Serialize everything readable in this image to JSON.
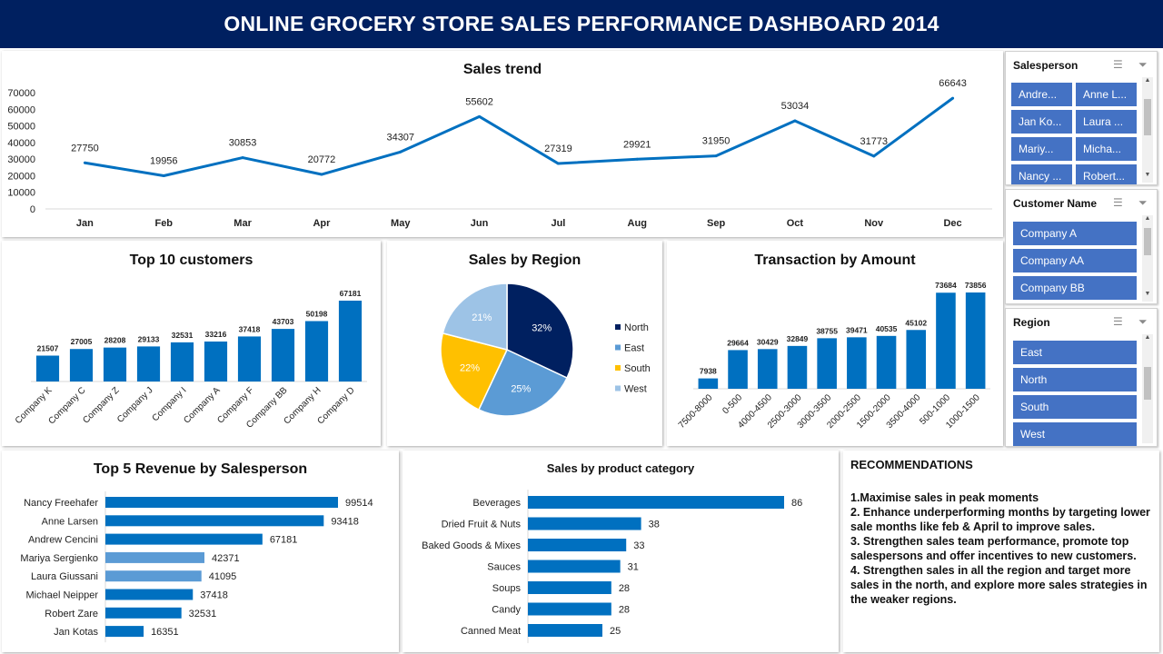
{
  "header": {
    "title": "ONLINE GROCERY STORE SALES PERFORMANCE DASHBOARD 2014"
  },
  "colors": {
    "header_bg": "#002060",
    "bar": "#0070c0",
    "bar_light": "#5b9bd5",
    "slicer_btn": "#4472c4"
  },
  "chart_data": [
    {
      "id": "sales_trend",
      "type": "line",
      "title": "Sales trend",
      "categories": [
        "Jan",
        "Feb",
        "Mar",
        "Apr",
        "May",
        "Jun",
        "Jul",
        "Aug",
        "Sep",
        "Oct",
        "Nov",
        "Dec"
      ],
      "values": [
        27750,
        19956,
        30853,
        20772,
        34307,
        55602,
        27319,
        29921,
        31950,
        53034,
        31773,
        66643
      ],
      "ylim": [
        0,
        70000
      ],
      "yticks": [
        "0",
        "10000",
        "20000",
        "30000",
        "40000",
        "50000",
        "60000",
        "70000"
      ],
      "grid": false
    },
    {
      "id": "top10_customers",
      "type": "bar",
      "title": "Top  10 customers",
      "categories": [
        "Company K",
        "Company C",
        "Company Z",
        "Company J",
        "Company I",
        "Company A",
        "Company F",
        "Company BB",
        "Company H",
        "Company D"
      ],
      "values": [
        21507,
        27005,
        28208,
        29133,
        32531,
        33216,
        37418,
        43703,
        50198,
        67181
      ]
    },
    {
      "id": "sales_by_region",
      "type": "pie",
      "title": "Sales by Region",
      "labels": [
        "North",
        "East",
        "South",
        "West"
      ],
      "values": [
        32,
        25,
        22,
        21
      ],
      "value_labels": [
        "32%",
        "25%",
        "22%",
        "21%"
      ],
      "colors": [
        "#002060",
        "#5b9bd5",
        "#ffc000",
        "#9dc3e6"
      ],
      "legend": "right"
    },
    {
      "id": "transaction_by_amount",
      "type": "bar",
      "title": "Transaction by Amount",
      "categories": [
        "7500-8000",
        "0-500",
        "4000-4500",
        "2500-3000",
        "3000-3500",
        "2000-2500",
        "1500-2000",
        "3500-4000",
        "500-1000",
        "1000-1500"
      ],
      "values": [
        7938,
        29664,
        30429,
        32849,
        38755,
        39471,
        40535,
        45102,
        73684,
        73856
      ]
    },
    {
      "id": "top5_revenue_salesperson",
      "type": "bar",
      "orientation": "horizontal",
      "title": "Top 5 Revenue  by Salesperson",
      "categories": [
        "Nancy Freehafer",
        "Anne Larsen",
        "Andrew Cencini",
        "Mariya Sergienko",
        "Laura Giussani",
        "Michael Neipper",
        "Robert Zare",
        "Jan Kotas"
      ],
      "values": [
        99514,
        93418,
        67181,
        42371,
        41095,
        37418,
        32531,
        16351
      ]
    },
    {
      "id": "sales_by_product_category",
      "type": "bar",
      "orientation": "horizontal",
      "title": "Sales by product category",
      "categories": [
        "Beverages",
        "Dried Fruit & Nuts",
        "Baked Goods & Mixes",
        "Sauces",
        "Soups",
        "Candy",
        "Canned Meat"
      ],
      "values": [
        86,
        38,
        33,
        31,
        28,
        28,
        25
      ]
    }
  ],
  "slicers": {
    "salesperson": {
      "title": "Salesperson",
      "items": [
        "Andre...",
        "Anne L...",
        "Jan Ko...",
        "Laura ...",
        "Mariy...",
        "Micha...",
        "Nancy ...",
        "Robert..."
      ]
    },
    "customer": {
      "title": "Customer Name",
      "items": [
        "Company A",
        "Company AA",
        "Company BB"
      ]
    },
    "region": {
      "title": "Region",
      "items": [
        "East",
        "North",
        "South",
        "West"
      ]
    }
  },
  "recommendations": {
    "title": "RECOMMENDATIONS",
    "items": [
      "1.Maximise sales in peak moments",
      "2.  Enhance underperforming months by targeting lower sale months like feb & April to improve sales.",
      "3.  Strengthen sales team performance, promote top salespersons and offer incentives to new customers.",
      "4.  Strengthen sales in all the region and target more sales in the north, and explore more sales strategies in the weaker regions."
    ]
  }
}
